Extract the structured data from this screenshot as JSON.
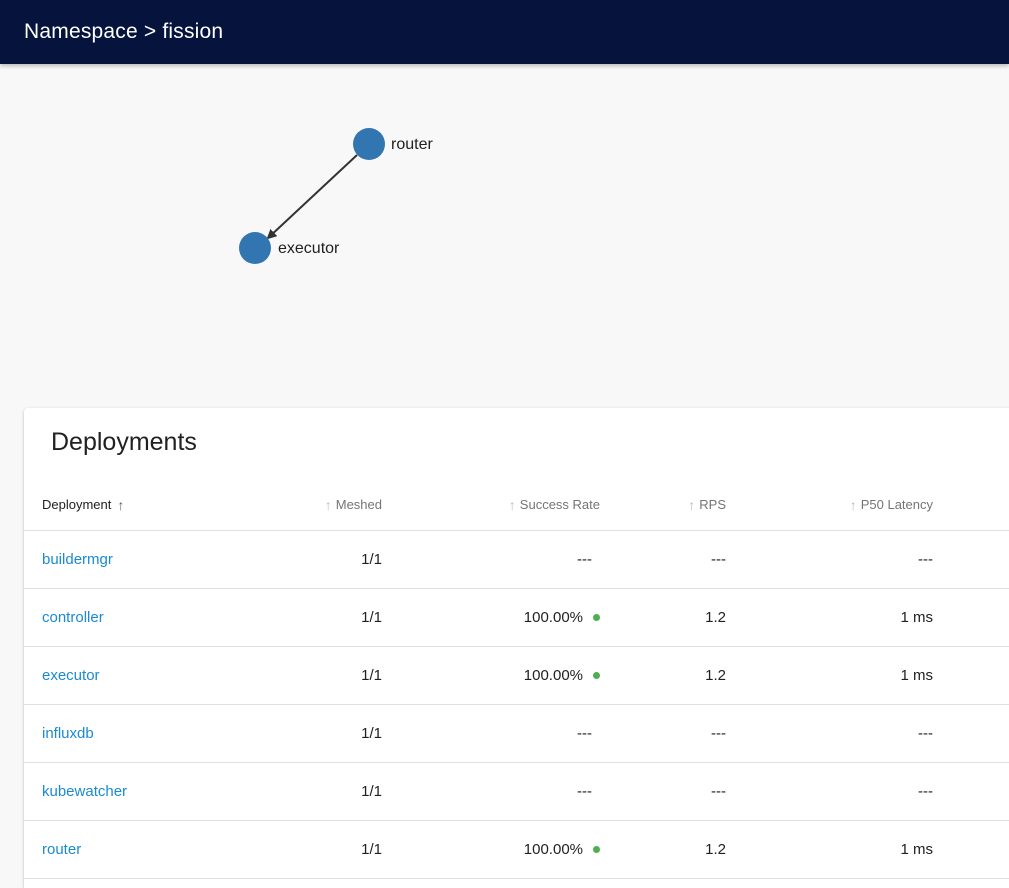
{
  "header": {
    "title": "Namespace > fission"
  },
  "graph": {
    "nodes": [
      {
        "id": "router",
        "label": "router"
      },
      {
        "id": "executor",
        "label": "executor"
      }
    ],
    "edges": [
      {
        "from": "router",
        "to": "executor"
      }
    ],
    "node_color": "#3276b1"
  },
  "deployments": {
    "title": "Deployments",
    "columns": {
      "deployment": "Deployment",
      "meshed": "Meshed",
      "success_rate": "Success Rate",
      "rps": "RPS",
      "p50": "P50 Latency"
    },
    "rows": [
      {
        "name": "buildermgr",
        "meshed": "1/1",
        "success_rate": "---",
        "rps": "---",
        "p50": "---"
      },
      {
        "name": "controller",
        "meshed": "1/1",
        "success_rate": "100.00%",
        "rps": "1.2",
        "p50": "1 ms"
      },
      {
        "name": "executor",
        "meshed": "1/1",
        "success_rate": "100.00%",
        "rps": "1.2",
        "p50": "1 ms"
      },
      {
        "name": "influxdb",
        "meshed": "1/1",
        "success_rate": "---",
        "rps": "---",
        "p50": "---"
      },
      {
        "name": "kubewatcher",
        "meshed": "1/1",
        "success_rate": "---",
        "rps": "---",
        "p50": "---"
      },
      {
        "name": "router",
        "meshed": "1/1",
        "success_rate": "100.00%",
        "rps": "1.2",
        "p50": "1 ms"
      }
    ]
  },
  "colors": {
    "appbar": "#05133d",
    "link": "#1a8ad4",
    "status_ok": "#4caf50"
  }
}
